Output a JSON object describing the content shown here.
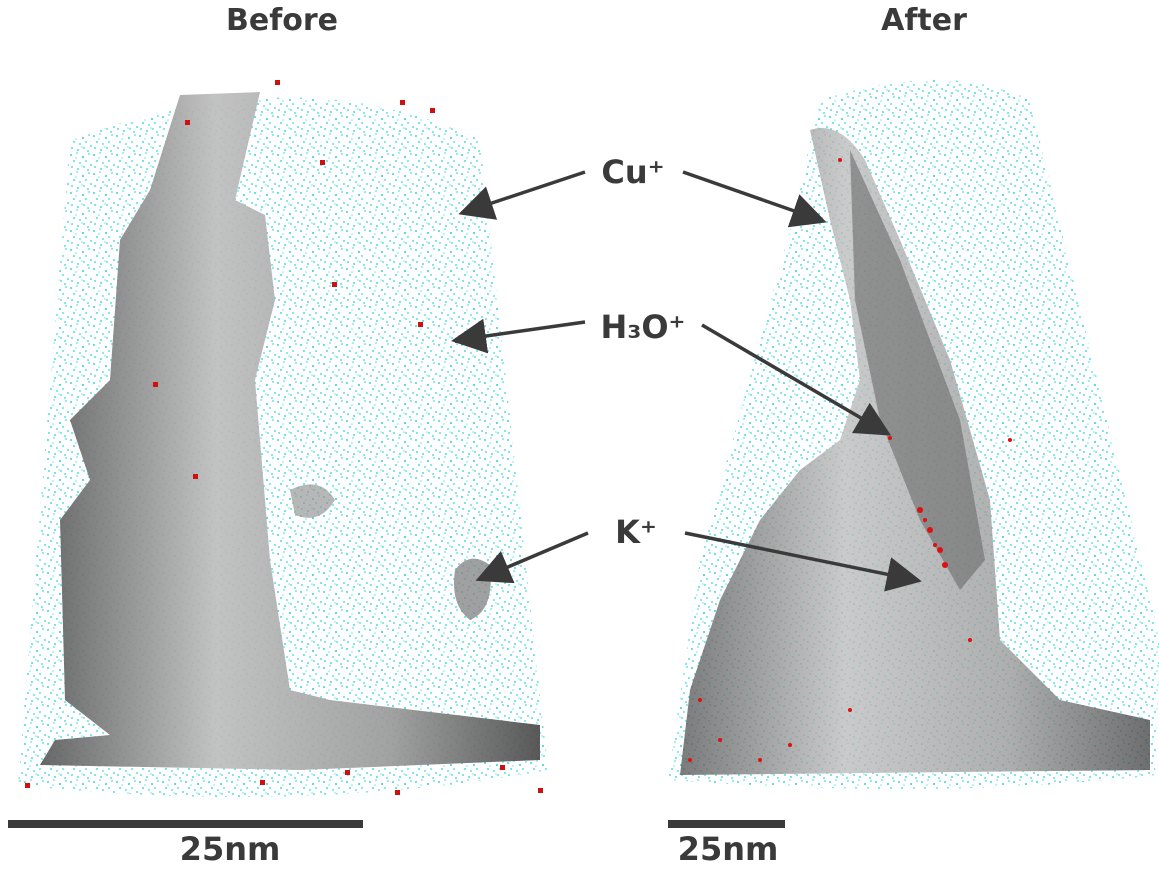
{
  "panels": [
    {
      "title": "Before",
      "scale_label": "25nm"
    },
    {
      "title": "After",
      "scale_label": "25nm"
    }
  ],
  "ion_labels": [
    "Cu⁺",
    "H₃O⁺",
    "K⁺"
  ]
}
